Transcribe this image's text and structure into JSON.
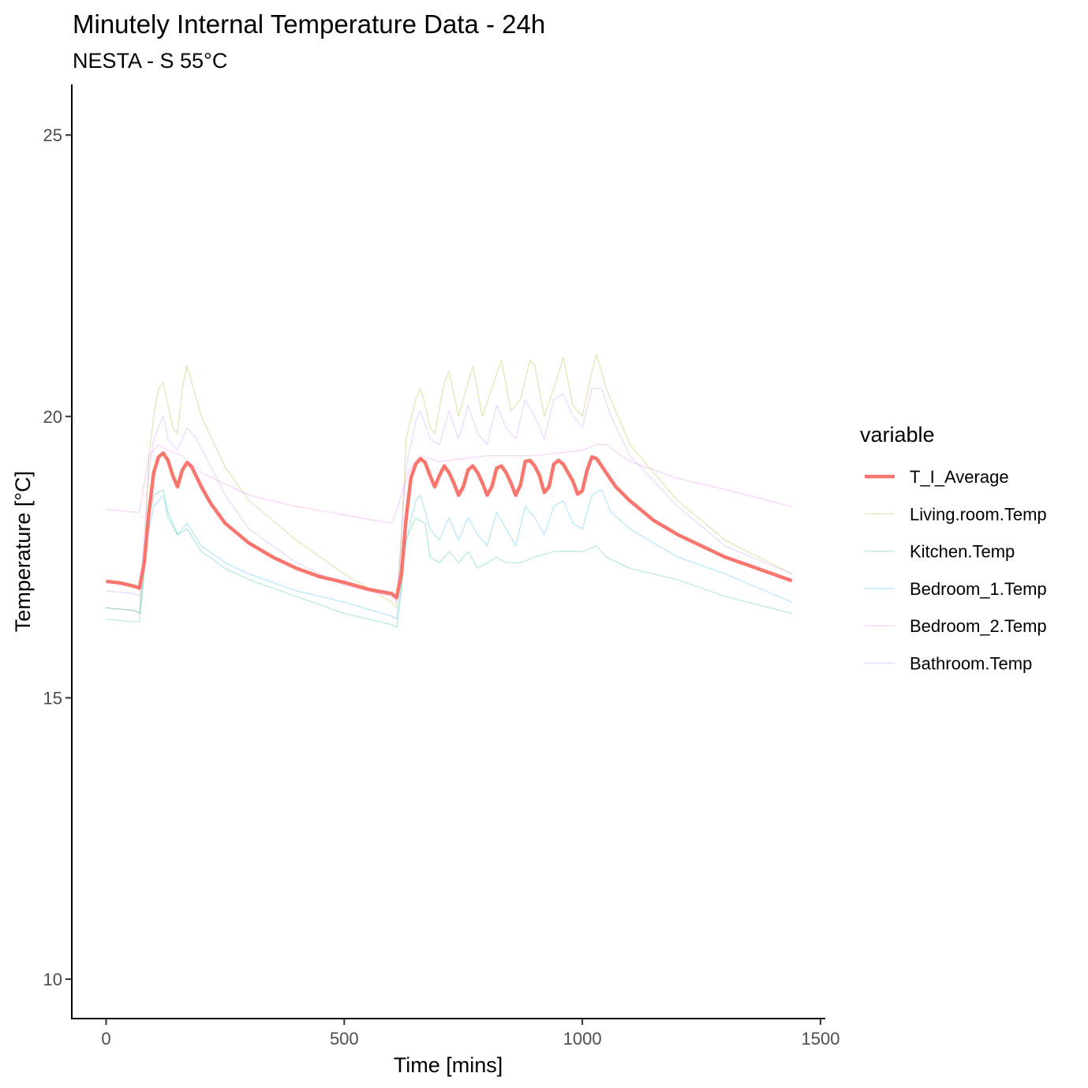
{
  "chart_data": {
    "type": "line",
    "title": "Minutely Internal Temperature Data - 24h",
    "subtitle": "NESTA - S 55°C",
    "xlabel": "Time [mins]",
    "ylabel": "Temperature [°C]",
    "xlim": [
      -72,
      1510
    ],
    "ylim": [
      9.3,
      25.9
    ],
    "x_ticks": [
      0,
      500,
      1000,
      1500
    ],
    "y_ticks": [
      10,
      15,
      20,
      25
    ],
    "grid": false,
    "legend": {
      "title": "variable",
      "position": "right"
    },
    "series": [
      {
        "name": "T_I_Average",
        "color": "#F8766D",
        "emphasis": true,
        "points": [
          [
            0,
            17.07
          ],
          [
            30,
            17.04
          ],
          [
            60,
            16.98
          ],
          [
            70,
            16.95
          ],
          [
            80,
            17.4
          ],
          [
            90,
            18.3
          ],
          [
            100,
            19.0
          ],
          [
            110,
            19.28
          ],
          [
            120,
            19.35
          ],
          [
            130,
            19.22
          ],
          [
            140,
            18.95
          ],
          [
            150,
            18.75
          ],
          [
            160,
            19.05
          ],
          [
            170,
            19.18
          ],
          [
            180,
            19.1
          ],
          [
            200,
            18.75
          ],
          [
            220,
            18.45
          ],
          [
            250,
            18.1
          ],
          [
            300,
            17.75
          ],
          [
            350,
            17.5
          ],
          [
            400,
            17.3
          ],
          [
            450,
            17.15
          ],
          [
            500,
            17.05
          ],
          [
            550,
            16.93
          ],
          [
            600,
            16.85
          ],
          [
            610,
            16.78
          ],
          [
            620,
            17.2
          ],
          [
            630,
            18.2
          ],
          [
            640,
            18.9
          ],
          [
            650,
            19.15
          ],
          [
            660,
            19.25
          ],
          [
            670,
            19.18
          ],
          [
            680,
            18.95
          ],
          [
            690,
            18.75
          ],
          [
            700,
            18.95
          ],
          [
            710,
            19.12
          ],
          [
            720,
            19.0
          ],
          [
            730,
            18.82
          ],
          [
            740,
            18.6
          ],
          [
            750,
            18.75
          ],
          [
            760,
            19.05
          ],
          [
            770,
            19.12
          ],
          [
            780,
            19.0
          ],
          [
            790,
            18.82
          ],
          [
            800,
            18.6
          ],
          [
            810,
            18.75
          ],
          [
            820,
            19.08
          ],
          [
            830,
            19.12
          ],
          [
            840,
            19.0
          ],
          [
            850,
            18.82
          ],
          [
            860,
            18.6
          ],
          [
            870,
            18.78
          ],
          [
            880,
            19.2
          ],
          [
            890,
            19.22
          ],
          [
            900,
            19.12
          ],
          [
            910,
            18.95
          ],
          [
            920,
            18.65
          ],
          [
            930,
            18.75
          ],
          [
            940,
            19.15
          ],
          [
            950,
            19.22
          ],
          [
            960,
            19.15
          ],
          [
            970,
            19.0
          ],
          [
            980,
            18.85
          ],
          [
            990,
            18.62
          ],
          [
            1000,
            18.68
          ],
          [
            1010,
            19.05
          ],
          [
            1020,
            19.28
          ],
          [
            1030,
            19.25
          ],
          [
            1050,
            19.0
          ],
          [
            1070,
            18.75
          ],
          [
            1100,
            18.5
          ],
          [
            1150,
            18.15
          ],
          [
            1200,
            17.9
          ],
          [
            1250,
            17.7
          ],
          [
            1300,
            17.5
          ],
          [
            1350,
            17.35
          ],
          [
            1400,
            17.2
          ],
          [
            1440,
            17.08
          ]
        ]
      },
      {
        "name": "Living.room.Temp",
        "color": "#A3A500",
        "points": [
          [
            0,
            16.6
          ],
          [
            60,
            16.55
          ],
          [
            70,
            16.5
          ],
          [
            80,
            17.5
          ],
          [
            90,
            19.3
          ],
          [
            100,
            20.0
          ],
          [
            110,
            20.5
          ],
          [
            120,
            20.6
          ],
          [
            130,
            20.2
          ],
          [
            140,
            19.8
          ],
          [
            150,
            19.7
          ],
          [
            160,
            20.5
          ],
          [
            170,
            20.9
          ],
          [
            180,
            20.6
          ],
          [
            200,
            20.0
          ],
          [
            250,
            19.1
          ],
          [
            300,
            18.5
          ],
          [
            400,
            17.8
          ],
          [
            500,
            17.2
          ],
          [
            600,
            16.7
          ],
          [
            610,
            16.6
          ],
          [
            620,
            17.8
          ],
          [
            630,
            19.6
          ],
          [
            650,
            20.3
          ],
          [
            660,
            20.5
          ],
          [
            670,
            20.2
          ],
          [
            680,
            19.8
          ],
          [
            690,
            19.7
          ],
          [
            710,
            20.6
          ],
          [
            720,
            20.8
          ],
          [
            740,
            20.0
          ],
          [
            760,
            20.6
          ],
          [
            770,
            20.9
          ],
          [
            790,
            20.0
          ],
          [
            810,
            20.5
          ],
          [
            830,
            21.0
          ],
          [
            850,
            20.1
          ],
          [
            870,
            20.3
          ],
          [
            890,
            21.0
          ],
          [
            900,
            20.9
          ],
          [
            920,
            20.0
          ],
          [
            940,
            20.5
          ],
          [
            960,
            21.05
          ],
          [
            980,
            20.2
          ],
          [
            1000,
            20.0
          ],
          [
            1020,
            20.8
          ],
          [
            1030,
            21.1
          ],
          [
            1050,
            20.5
          ],
          [
            1100,
            19.5
          ],
          [
            1200,
            18.5
          ],
          [
            1300,
            17.8
          ],
          [
            1440,
            17.2
          ]
        ]
      },
      {
        "name": "Kitchen.Temp",
        "color": "#00BF7D",
        "points": [
          [
            0,
            16.4
          ],
          [
            60,
            16.35
          ],
          [
            70,
            16.35
          ],
          [
            80,
            17.2
          ],
          [
            90,
            18.2
          ],
          [
            100,
            18.6
          ],
          [
            120,
            18.7
          ],
          [
            130,
            18.3
          ],
          [
            150,
            17.9
          ],
          [
            170,
            18.0
          ],
          [
            200,
            17.6
          ],
          [
            250,
            17.3
          ],
          [
            300,
            17.1
          ],
          [
            400,
            16.8
          ],
          [
            500,
            16.5
          ],
          [
            600,
            16.3
          ],
          [
            610,
            16.25
          ],
          [
            620,
            16.9
          ],
          [
            630,
            17.8
          ],
          [
            650,
            18.2
          ],
          [
            670,
            18.1
          ],
          [
            680,
            17.5
          ],
          [
            700,
            17.4
          ],
          [
            720,
            17.6
          ],
          [
            740,
            17.4
          ],
          [
            760,
            17.6
          ],
          [
            780,
            17.3
          ],
          [
            800,
            17.4
          ],
          [
            820,
            17.5
          ],
          [
            840,
            17.4
          ],
          [
            870,
            17.4
          ],
          [
            900,
            17.5
          ],
          [
            940,
            17.6
          ],
          [
            1000,
            17.6
          ],
          [
            1030,
            17.7
          ],
          [
            1050,
            17.5
          ],
          [
            1100,
            17.3
          ],
          [
            1200,
            17.1
          ],
          [
            1300,
            16.8
          ],
          [
            1440,
            16.5
          ]
        ]
      },
      {
        "name": "Bedroom_1.Temp",
        "color": "#00B0F6",
        "points": [
          [
            0,
            16.6
          ],
          [
            60,
            16.55
          ],
          [
            70,
            16.5
          ],
          [
            80,
            17.3
          ],
          [
            90,
            18.0
          ],
          [
            100,
            18.4
          ],
          [
            120,
            18.6
          ],
          [
            130,
            18.2
          ],
          [
            150,
            17.9
          ],
          [
            170,
            18.1
          ],
          [
            200,
            17.7
          ],
          [
            250,
            17.4
          ],
          [
            300,
            17.2
          ],
          [
            400,
            16.9
          ],
          [
            500,
            16.7
          ],
          [
            600,
            16.45
          ],
          [
            610,
            16.4
          ],
          [
            620,
            17.0
          ],
          [
            630,
            17.8
          ],
          [
            650,
            18.5
          ],
          [
            660,
            18.6
          ],
          [
            680,
            18.0
          ],
          [
            700,
            17.8
          ],
          [
            720,
            18.2
          ],
          [
            740,
            17.8
          ],
          [
            760,
            18.2
          ],
          [
            780,
            17.9
          ],
          [
            800,
            17.7
          ],
          [
            820,
            18.3
          ],
          [
            840,
            18.0
          ],
          [
            860,
            17.7
          ],
          [
            880,
            18.4
          ],
          [
            900,
            18.2
          ],
          [
            920,
            17.9
          ],
          [
            940,
            18.4
          ],
          [
            960,
            18.5
          ],
          [
            980,
            18.1
          ],
          [
            1000,
            18.0
          ],
          [
            1020,
            18.6
          ],
          [
            1040,
            18.7
          ],
          [
            1060,
            18.3
          ],
          [
            1100,
            18.0
          ],
          [
            1200,
            17.5
          ],
          [
            1300,
            17.2
          ],
          [
            1440,
            16.7
          ]
        ]
      },
      {
        "name": "Bedroom_2.Temp",
        "color": "#E76BF3",
        "points": [
          [
            0,
            18.35
          ],
          [
            60,
            18.3
          ],
          [
            70,
            18.3
          ],
          [
            80,
            18.8
          ],
          [
            90,
            19.3
          ],
          [
            110,
            19.5
          ],
          [
            130,
            19.4
          ],
          [
            160,
            19.3
          ],
          [
            200,
            19.0
          ],
          [
            250,
            18.8
          ],
          [
            300,
            18.6
          ],
          [
            400,
            18.4
          ],
          [
            500,
            18.25
          ],
          [
            600,
            18.1
          ],
          [
            620,
            18.6
          ],
          [
            640,
            19.1
          ],
          [
            660,
            19.3
          ],
          [
            700,
            19.2
          ],
          [
            800,
            19.3
          ],
          [
            900,
            19.3
          ],
          [
            1000,
            19.4
          ],
          [
            1030,
            19.5
          ],
          [
            1050,
            19.5
          ],
          [
            1100,
            19.2
          ],
          [
            1200,
            18.9
          ],
          [
            1300,
            18.7
          ],
          [
            1440,
            18.4
          ]
        ]
      },
      {
        "name": "Bathroom.Temp",
        "color": "#C77CFF",
        "points": [
          [
            0,
            16.9
          ],
          [
            60,
            16.85
          ],
          [
            70,
            16.8
          ],
          [
            80,
            17.9
          ],
          [
            90,
            19.0
          ],
          [
            100,
            19.6
          ],
          [
            120,
            20.0
          ],
          [
            130,
            19.6
          ],
          [
            150,
            19.4
          ],
          [
            170,
            19.8
          ],
          [
            190,
            19.6
          ],
          [
            220,
            19.1
          ],
          [
            250,
            18.6
          ],
          [
            300,
            18.0
          ],
          [
            400,
            17.4
          ],
          [
            500,
            17.0
          ],
          [
            600,
            16.8
          ],
          [
            610,
            16.7
          ],
          [
            620,
            17.9
          ],
          [
            630,
            19.1
          ],
          [
            650,
            19.9
          ],
          [
            660,
            20.1
          ],
          [
            680,
            19.6
          ],
          [
            700,
            19.5
          ],
          [
            720,
            20.1
          ],
          [
            740,
            19.6
          ],
          [
            760,
            20.2
          ],
          [
            780,
            19.7
          ],
          [
            800,
            19.5
          ],
          [
            820,
            20.2
          ],
          [
            840,
            19.8
          ],
          [
            860,
            19.6
          ],
          [
            880,
            20.3
          ],
          [
            900,
            20.0
          ],
          [
            920,
            19.6
          ],
          [
            940,
            20.3
          ],
          [
            960,
            20.4
          ],
          [
            980,
            20.0
          ],
          [
            1000,
            19.8
          ],
          [
            1020,
            20.5
          ],
          [
            1040,
            20.5
          ],
          [
            1060,
            20.0
          ],
          [
            1100,
            19.3
          ],
          [
            1200,
            18.4
          ],
          [
            1300,
            17.7
          ],
          [
            1440,
            17.2
          ]
        ]
      }
    ]
  }
}
